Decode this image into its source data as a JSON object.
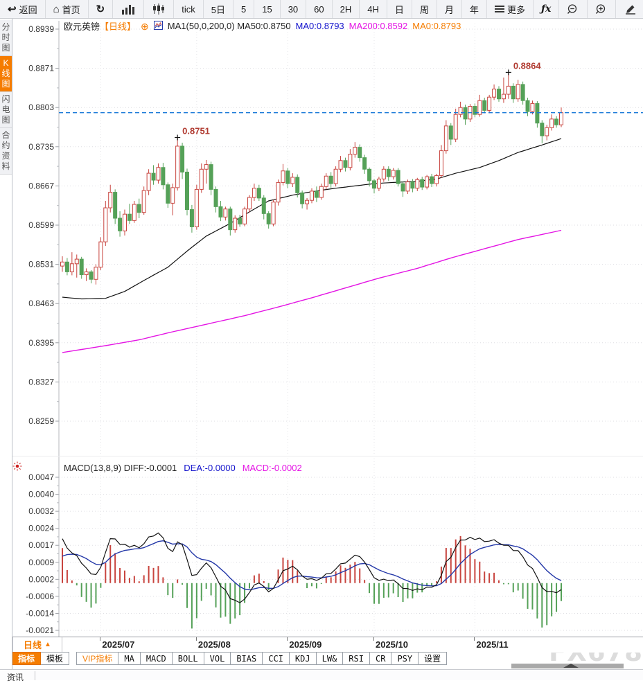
{
  "toolbar": {
    "items": [
      {
        "icon": "back-icon",
        "glyph": "↩",
        "label": "返回",
        "name": "back-button"
      },
      {
        "icon": "home-icon",
        "glyph": "⌂",
        "label": "首页",
        "name": "home-button"
      },
      {
        "icon": "refresh-icon",
        "glyph": "↻",
        "label": "",
        "name": "refresh-button"
      },
      {
        "icon": "bar-chart-icon",
        "svg": "bars",
        "label": "",
        "name": "bar-chart-button"
      },
      {
        "icon": "candlestick-icon",
        "svg": "candles",
        "label": "",
        "name": "candle-chart-button"
      },
      {
        "label": "tick",
        "name": "period-tick-button"
      },
      {
        "label": "5日",
        "name": "period-5d-button"
      },
      {
        "label": "5",
        "name": "period-5m-button"
      },
      {
        "label": "15",
        "name": "period-15m-button"
      },
      {
        "label": "30",
        "name": "period-30m-button"
      },
      {
        "label": "60",
        "name": "period-60m-button"
      },
      {
        "label": "2H",
        "name": "period-2h-button"
      },
      {
        "label": "4H",
        "name": "period-4h-button"
      },
      {
        "label": "日",
        "name": "period-day-button"
      },
      {
        "label": "周",
        "name": "period-week-button"
      },
      {
        "label": "月",
        "name": "period-month-button"
      },
      {
        "label": "年",
        "name": "period-year-button"
      },
      {
        "icon": "menu-icon",
        "svg": "menu",
        "label": "更多",
        "name": "more-button"
      },
      {
        "label": "ƒx",
        "cls": "fx",
        "name": "formula-button"
      },
      {
        "icon": "zoom-out-icon",
        "svg": "zoomout",
        "label": "",
        "name": "zoom-out-button"
      },
      {
        "icon": "zoom-in-icon",
        "svg": "zoomin",
        "label": "",
        "name": "zoom-in-button"
      },
      {
        "icon": "draw-pencil-icon",
        "svg": "pencil",
        "label": "",
        "name": "draw-button"
      },
      {
        "icon": "angle-tool-icon",
        "svg": "angle",
        "label": "",
        "name": "angle-tool-button"
      }
    ]
  },
  "sidebar": {
    "items": [
      {
        "label": "分时图",
        "active": false
      },
      {
        "label": "K线图",
        "active": true
      },
      {
        "label": "闪电图",
        "active": false
      },
      {
        "label": "合约资料",
        "active": false
      }
    ]
  },
  "chart_header": {
    "symbol": "欧元英镑",
    "period": "【日线】",
    "plus": "⊕",
    "ma_line": "MA1(50,0,200,0) MA50:0.8750",
    "ma0_blue": "MA0:0.8793",
    "ma200": "MA200:0.8592",
    "ma0_orange": "MA0:0.8793"
  },
  "macd_header": {
    "diff_part": "MACD(13,8,9) DIFF:-0.0001",
    "dea_part": "DEA:-0.0000",
    "macd_part": "MACD:-0.0002"
  },
  "price_axis": {
    "ticks": [
      "0.8939",
      "0.8871",
      "0.8803",
      "0.8735",
      "0.8667",
      "0.8599",
      "0.8531",
      "0.8463",
      "0.8395",
      "0.8327",
      "0.8259"
    ]
  },
  "macd_axis": {
    "ticks": [
      "0.0047",
      "0.0040",
      "0.0032",
      "0.0024",
      "0.0017",
      "0.0009",
      "0.0002",
      "-0.0006",
      "-0.0014",
      "-0.0021"
    ]
  },
  "x_axis": {
    "months": [
      {
        "label": "2025/07",
        "index": 8
      },
      {
        "label": "2025/08",
        "index": 28
      },
      {
        "label": "2025/09",
        "index": 47
      },
      {
        "label": "2025/10",
        "index": 65
      },
      {
        "label": "2025/11",
        "index": 86
      }
    ]
  },
  "tabs": {
    "period_label": "日线",
    "period_arrow": "▲",
    "items": [
      {
        "label": "指标",
        "active": true
      },
      {
        "label": "模板"
      },
      {
        "label": "VIP指标",
        "vip": true,
        "gap": true
      },
      {
        "label": "MA",
        "latin": true
      },
      {
        "label": "MACD",
        "latin": true
      },
      {
        "label": "BOLL",
        "latin": true
      },
      {
        "label": "VOL",
        "latin": true
      },
      {
        "label": "BIAS",
        "latin": true
      },
      {
        "label": "CCI",
        "latin": true
      },
      {
        "label": "KDJ",
        "latin": true
      },
      {
        "label": "LW&",
        "latin": true
      },
      {
        "label": "RSI",
        "latin": true
      },
      {
        "label": "CR",
        "latin": true
      },
      {
        "label": "PSY",
        "latin": true
      },
      {
        "label": "设置"
      }
    ]
  },
  "footer": {
    "news_tab": "资讯"
  },
  "watermark": "FX678",
  "colors": {
    "up": "#c8443e",
    "down": "#55a158",
    "ma50": "#111111",
    "ma200": "#e414e4",
    "price_line": "#1778d8",
    "diff": "#111111",
    "dea": "#2438a8",
    "accent": "#f57c00",
    "annotation": "#b03a30",
    "watermark": "#dcdcdc"
  },
  "chart_data": {
    "type": "candlestick",
    "title": "欧元英镑 日线 (EUR/GBP daily)",
    "ylim": [
      0.8259,
      0.8939
    ],
    "macd_ylim": [
      -0.0021,
      0.0047
    ],
    "last_price_line": 0.8794,
    "annotations": [
      {
        "index": 24,
        "price": 0.8751,
        "label": "0.8751"
      },
      {
        "index": 93,
        "price": 0.8864,
        "label": "0.8864"
      }
    ],
    "ma50_anchors": [
      [
        0,
        0.8474
      ],
      [
        4,
        0.8471
      ],
      [
        9,
        0.8472
      ],
      [
        13,
        0.8484
      ],
      [
        17,
        0.8503
      ],
      [
        22,
        0.8526
      ],
      [
        26,
        0.8554
      ],
      [
        30,
        0.858
      ],
      [
        35,
        0.8602
      ],
      [
        39,
        0.8622
      ],
      [
        43,
        0.8641
      ],
      [
        48,
        0.8651
      ],
      [
        52,
        0.8657
      ],
      [
        56,
        0.8662
      ],
      [
        61,
        0.8667
      ],
      [
        65,
        0.8671
      ],
      [
        69,
        0.8673
      ],
      [
        74,
        0.8675
      ],
      [
        78,
        0.8679
      ],
      [
        82,
        0.8689
      ],
      [
        87,
        0.8699
      ],
      [
        91,
        0.8711
      ],
      [
        95,
        0.8725
      ],
      [
        100,
        0.8738
      ],
      [
        104,
        0.8749
      ]
    ],
    "ma200_anchors": [
      [
        0,
        0.8378
      ],
      [
        9,
        0.839
      ],
      [
        16,
        0.84
      ],
      [
        23,
        0.8414
      ],
      [
        30,
        0.8427
      ],
      [
        38,
        0.8442
      ],
      [
        45,
        0.8457
      ],
      [
        52,
        0.8473
      ],
      [
        59,
        0.849
      ],
      [
        66,
        0.8507
      ],
      [
        74,
        0.8524
      ],
      [
        81,
        0.8542
      ],
      [
        88,
        0.8558
      ],
      [
        95,
        0.8574
      ],
      [
        104,
        0.859
      ]
    ],
    "macd_params": {
      "fast": 8,
      "slow": 13,
      "signal": 9,
      "seed_diff": 0.0023,
      "seed_dea": 0.001
    },
    "ohlc": [
      [
        0.8528,
        0.8545,
        0.8518,
        0.8535
      ],
      [
        0.8535,
        0.8542,
        0.8512,
        0.8518
      ],
      [
        0.8518,
        0.8552,
        0.8512,
        0.8532
      ],
      [
        0.8532,
        0.8548,
        0.8508,
        0.854
      ],
      [
        0.854,
        0.8544,
        0.8506,
        0.8513
      ],
      [
        0.8513,
        0.8524,
        0.8502,
        0.8518
      ],
      [
        0.8518,
        0.8521,
        0.8498,
        0.8505
      ],
      [
        0.8505,
        0.8531,
        0.8496,
        0.8526
      ],
      [
        0.8526,
        0.8578,
        0.8521,
        0.857
      ],
      [
        0.857,
        0.8641,
        0.8563,
        0.8629
      ],
      [
        0.8629,
        0.8669,
        0.8621,
        0.8656
      ],
      [
        0.8656,
        0.8661,
        0.8601,
        0.8611
      ],
      [
        0.8611,
        0.8623,
        0.8579,
        0.8589
      ],
      [
        0.8589,
        0.8626,
        0.8581,
        0.8618
      ],
      [
        0.8618,
        0.8636,
        0.8601,
        0.8607
      ],
      [
        0.8607,
        0.8641,
        0.8603,
        0.8635
      ],
      [
        0.8635,
        0.8645,
        0.8611,
        0.8621
      ],
      [
        0.8621,
        0.8666,
        0.8617,
        0.8659
      ],
      [
        0.8659,
        0.8696,
        0.8651,
        0.8689
      ],
      [
        0.8689,
        0.8703,
        0.8669,
        0.8677
      ],
      [
        0.8677,
        0.8706,
        0.8671,
        0.8699
      ],
      [
        0.8699,
        0.8707,
        0.8661,
        0.8669
      ],
      [
        0.8669,
        0.8673,
        0.8629,
        0.8637
      ],
      [
        0.8637,
        0.8671,
        0.8616,
        0.8664
      ],
      [
        0.8664,
        0.8751,
        0.8659,
        0.8736
      ],
      [
        0.8736,
        0.8742,
        0.8679,
        0.8691
      ],
      [
        0.8691,
        0.8697,
        0.8616,
        0.8626
      ],
      [
        0.8626,
        0.8634,
        0.8586,
        0.8596
      ],
      [
        0.8596,
        0.8669,
        0.8591,
        0.8661
      ],
      [
        0.8661,
        0.8706,
        0.8655,
        0.8696
      ],
      [
        0.8696,
        0.8712,
        0.8671,
        0.8704
      ],
      [
        0.8704,
        0.8709,
        0.8651,
        0.8661
      ],
      [
        0.8661,
        0.8666,
        0.8621,
        0.8631
      ],
      [
        0.8631,
        0.8641,
        0.8606,
        0.8613
      ],
      [
        0.8613,
        0.8631,
        0.8607,
        0.8627
      ],
      [
        0.8627,
        0.8631,
        0.8581,
        0.8591
      ],
      [
        0.8591,
        0.8616,
        0.8586,
        0.8611
      ],
      [
        0.8611,
        0.8617,
        0.8596,
        0.8601
      ],
      [
        0.8601,
        0.8631,
        0.8597,
        0.8627
      ],
      [
        0.8627,
        0.8651,
        0.8621,
        0.8647
      ],
      [
        0.8647,
        0.8671,
        0.8641,
        0.8663
      ],
      [
        0.8663,
        0.8669,
        0.8641,
        0.8646
      ],
      [
        0.8646,
        0.8651,
        0.8609,
        0.8619
      ],
      [
        0.8619,
        0.8623,
        0.8593,
        0.8601
      ],
      [
        0.8601,
        0.8643,
        0.8597,
        0.8639
      ],
      [
        0.8639,
        0.8678,
        0.8633,
        0.8673
      ],
      [
        0.8673,
        0.8705,
        0.8668,
        0.8693
      ],
      [
        0.8693,
        0.8698,
        0.8663,
        0.8671
      ],
      [
        0.8671,
        0.8689,
        0.8665,
        0.8682
      ],
      [
        0.8682,
        0.8687,
        0.8647,
        0.8655
      ],
      [
        0.8655,
        0.8659,
        0.8628,
        0.8636
      ],
      [
        0.8636,
        0.8646,
        0.8626,
        0.8642
      ],
      [
        0.8642,
        0.8663,
        0.8637,
        0.8658
      ],
      [
        0.8658,
        0.8666,
        0.8639,
        0.8647
      ],
      [
        0.8647,
        0.8671,
        0.8643,
        0.8666
      ],
      [
        0.8666,
        0.8689,
        0.8661,
        0.8684
      ],
      [
        0.8684,
        0.8691,
        0.8664,
        0.8671
      ],
      [
        0.8671,
        0.8701,
        0.8666,
        0.8696
      ],
      [
        0.8696,
        0.8719,
        0.8691,
        0.8711
      ],
      [
        0.8711,
        0.8716,
        0.8692,
        0.8699
      ],
      [
        0.8699,
        0.8731,
        0.8694,
        0.8722
      ],
      [
        0.8722,
        0.8743,
        0.8716,
        0.8734
      ],
      [
        0.8734,
        0.8739,
        0.8709,
        0.8716
      ],
      [
        0.8716,
        0.8721,
        0.8688,
        0.8696
      ],
      [
        0.8696,
        0.8699,
        0.8666,
        0.8676
      ],
      [
        0.8676,
        0.8679,
        0.8654,
        0.8663
      ],
      [
        0.8663,
        0.8683,
        0.8658,
        0.8679
      ],
      [
        0.8679,
        0.8701,
        0.8674,
        0.8696
      ],
      [
        0.8696,
        0.8701,
        0.8676,
        0.8683
      ],
      [
        0.8683,
        0.8698,
        0.8678,
        0.8694
      ],
      [
        0.8694,
        0.8698,
        0.8666,
        0.8671
      ],
      [
        0.8671,
        0.8675,
        0.8648,
        0.8658
      ],
      [
        0.8658,
        0.8678,
        0.8653,
        0.8674
      ],
      [
        0.8674,
        0.8679,
        0.8656,
        0.8663
      ],
      [
        0.8663,
        0.8681,
        0.8658,
        0.8678
      ],
      [
        0.8678,
        0.8683,
        0.866,
        0.8665
      ],
      [
        0.8665,
        0.8686,
        0.8661,
        0.8683
      ],
      [
        0.8683,
        0.8688,
        0.8665,
        0.8671
      ],
      [
        0.8671,
        0.8688,
        0.8666,
        0.8685
      ],
      [
        0.8685,
        0.8738,
        0.8681,
        0.8728
      ],
      [
        0.8728,
        0.8781,
        0.8723,
        0.8771
      ],
      [
        0.8771,
        0.8776,
        0.8738,
        0.8748
      ],
      [
        0.8748,
        0.8801,
        0.8743,
        0.8791
      ],
      [
        0.8791,
        0.8813,
        0.8786,
        0.8803
      ],
      [
        0.8803,
        0.8808,
        0.8773,
        0.8783
      ],
      [
        0.8783,
        0.8809,
        0.8778,
        0.8805
      ],
      [
        0.8805,
        0.881,
        0.8786,
        0.8791
      ],
      [
        0.8791,
        0.8825,
        0.8787,
        0.8815
      ],
      [
        0.8815,
        0.882,
        0.8793,
        0.8798
      ],
      [
        0.8798,
        0.8825,
        0.8793,
        0.8821
      ],
      [
        0.8821,
        0.8843,
        0.8816,
        0.8835
      ],
      [
        0.8835,
        0.884,
        0.8813,
        0.8818
      ],
      [
        0.8818,
        0.8855,
        0.8811,
        0.8826
      ],
      [
        0.8826,
        0.8864,
        0.8818,
        0.884
      ],
      [
        0.884,
        0.8845,
        0.8811,
        0.8818
      ],
      [
        0.8818,
        0.8851,
        0.8813,
        0.8843
      ],
      [
        0.8843,
        0.8848,
        0.8808,
        0.8815
      ],
      [
        0.8815,
        0.882,
        0.8788,
        0.8796
      ],
      [
        0.8796,
        0.8815,
        0.8791,
        0.881
      ],
      [
        0.881,
        0.8814,
        0.8768,
        0.8776
      ],
      [
        0.8776,
        0.8781,
        0.8741,
        0.8754
      ],
      [
        0.8754,
        0.8773,
        0.8746,
        0.8768
      ],
      [
        0.8768,
        0.8791,
        0.8763,
        0.8783
      ],
      [
        0.8783,
        0.8788,
        0.8768,
        0.8773
      ],
      [
        0.8773,
        0.8803,
        0.8769,
        0.8794
      ]
    ]
  }
}
